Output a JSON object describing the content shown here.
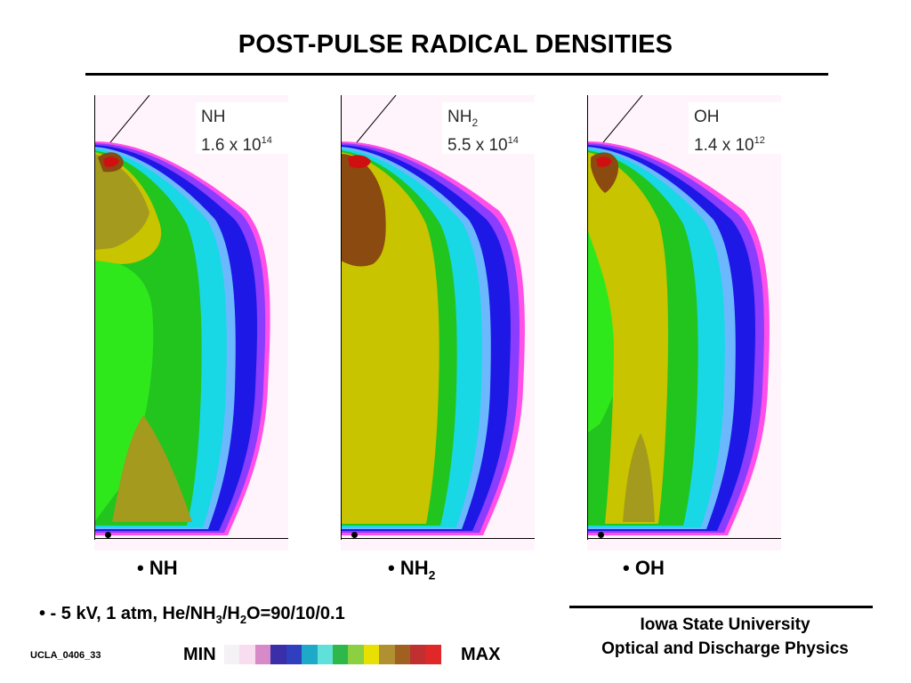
{
  "title": "POST-PULSE RADICAL DENSITIES",
  "panels": [
    {
      "species": "NH",
      "sub": "",
      "density_mantissa": "1.6 x 10",
      "density_exp": "14",
      "caption": "NH",
      "caption_sub": ""
    },
    {
      "species": "NH",
      "sub": "2",
      "density_mantissa": "5.5 x 10",
      "density_exp": "14",
      "caption": "NH",
      "caption_sub": "2"
    },
    {
      "species": "OH",
      "sub": "",
      "density_mantissa": "1.4 x 10",
      "density_exp": "12",
      "caption": "OH",
      "caption_sub": ""
    }
  ],
  "bullet": "•",
  "conditions": {
    "prefix": "• - 5 kV, 1 atm,  He/NH",
    "sub1": "3",
    "mid1": "/H",
    "sub2": "2",
    "suffix": "O=90/10/0.1"
  },
  "institution": {
    "line1": "Iowa State University",
    "line2": "Optical and Discharge Physics"
  },
  "slide_id": "UCLA_0406_33",
  "scale": {
    "min_label": "MIN",
    "max_label": "MAX",
    "colors": [
      "#f4f2f4",
      "#f8dcef",
      "#d88ac8",
      "#3a2fa8",
      "#2f3fc0",
      "#1fa9c8",
      "#5fe0d8",
      "#2fb84a",
      "#8ad040",
      "#e8e000",
      "#b09030",
      "#a06020",
      "#c03030",
      "#e02828"
    ]
  },
  "colors": {
    "pink_edge": "#ff4fe8",
    "violet": "#8a3cff",
    "blue": "#1e18e6",
    "light_blue": "#6bb8ff",
    "cyan": "#18d8e6",
    "green": "#22c41e",
    "bright_green": "#2ee81c",
    "yellow": "#c8c400",
    "olive": "#a39a1e",
    "brown": "#8a4a10",
    "red": "#d01010"
  }
}
